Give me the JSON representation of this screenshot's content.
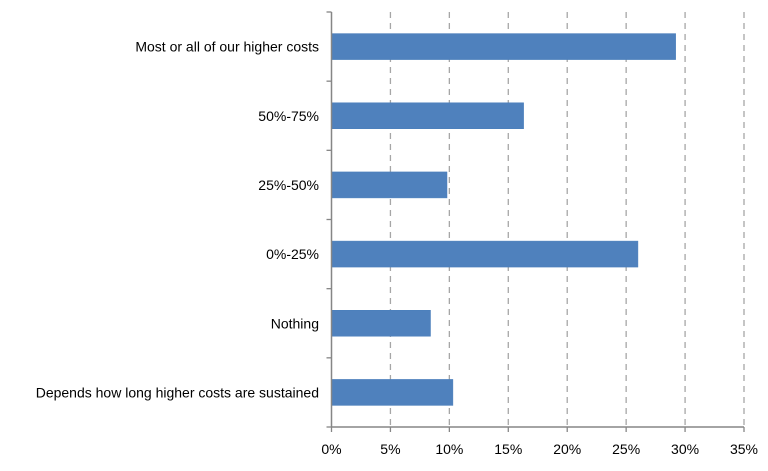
{
  "chart_data": {
    "type": "bar",
    "orientation": "horizontal",
    "title": "",
    "xlabel": "",
    "ylabel": "",
    "categories": [
      "Most or all of our higher costs",
      "50%-75%",
      "25%-50%",
      "0%-25%",
      "Nothing",
      "Depends how long higher costs are sustained"
    ],
    "values": [
      29.2,
      16.3,
      9.8,
      26.0,
      8.4,
      10.3
    ],
    "xlim": [
      0,
      35
    ],
    "xticks": [
      0,
      5,
      10,
      15,
      20,
      25,
      30,
      35
    ],
    "xtick_labels": [
      "0%",
      "5%",
      "10%",
      "15%",
      "20%",
      "25%",
      "30%",
      "35%"
    ],
    "grid": "vertical dashed",
    "legend": "none",
    "bar_color": "#4f81bd",
    "grid_color": "#a6a6a6",
    "axis_color": "#868686"
  }
}
